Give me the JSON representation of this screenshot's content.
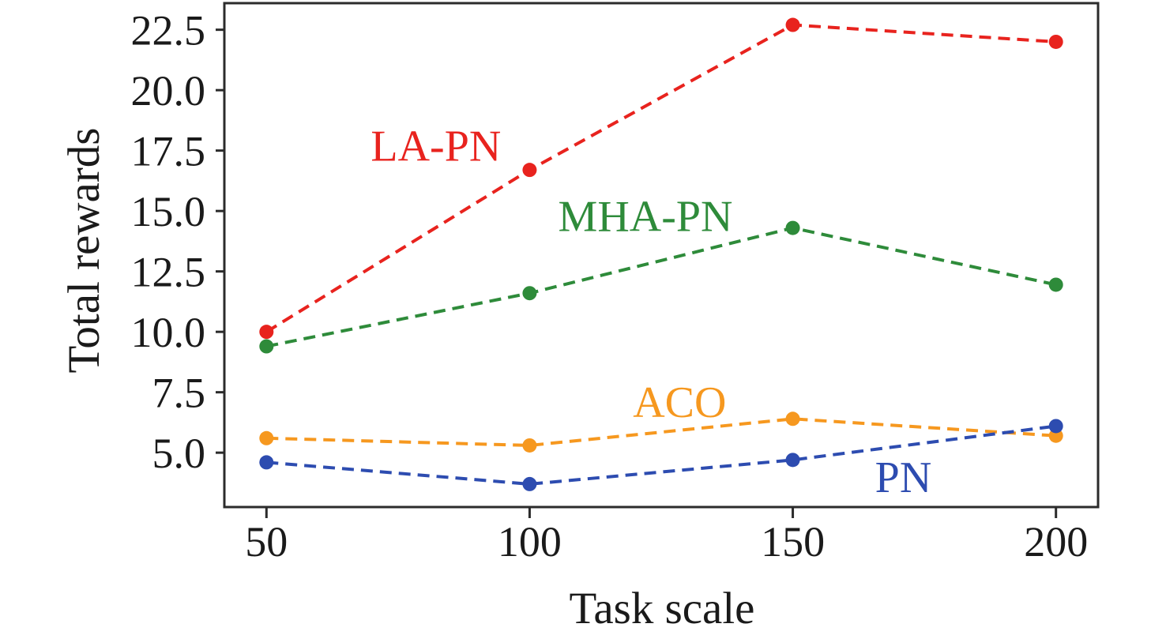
{
  "chart_data": {
    "type": "line",
    "title": "",
    "xlabel": "Task scale",
    "ylabel": "Total rewards",
    "x": [
      50,
      100,
      150,
      200
    ],
    "xtick_labels": [
      "50",
      "100",
      "150",
      "200"
    ],
    "ytick_values": [
      5.0,
      7.5,
      10.0,
      12.5,
      15.0,
      17.5,
      20.0,
      22.5
    ],
    "ytick_labels": [
      "5.0",
      "7.5",
      "10.0",
      "12.5",
      "15.0",
      "17.5",
      "20.0",
      "22.5"
    ],
    "xlim": [
      42,
      208
    ],
    "ylim": [
      2.75,
      23.6
    ],
    "grid": false,
    "legend_position": "inline-annotations",
    "line_style": "dashed",
    "marker": "circle",
    "axis_color": "#2b2b2b",
    "series": [
      {
        "name": "LA-PN",
        "color": "#e8231e",
        "values": [
          10.0,
          16.7,
          22.7,
          22.0
        ],
        "label_x": 82.2,
        "label_y": 17.7
      },
      {
        "name": "MHA-PN",
        "color": "#2e8b3a",
        "values": [
          9.4,
          11.6,
          14.3,
          11.95
        ],
        "label_x": 122.0,
        "label_y": 14.8
      },
      {
        "name": "ACO",
        "color": "#f6981f",
        "values": [
          5.6,
          5.3,
          6.4,
          5.7
        ],
        "label_x": 128.5,
        "label_y": 7.1
      },
      {
        "name": "PN",
        "color": "#2d4cb0",
        "values": [
          4.6,
          3.7,
          4.7,
          6.1
        ],
        "label_x": 171.0,
        "label_y": 4.0
      }
    ]
  }
}
